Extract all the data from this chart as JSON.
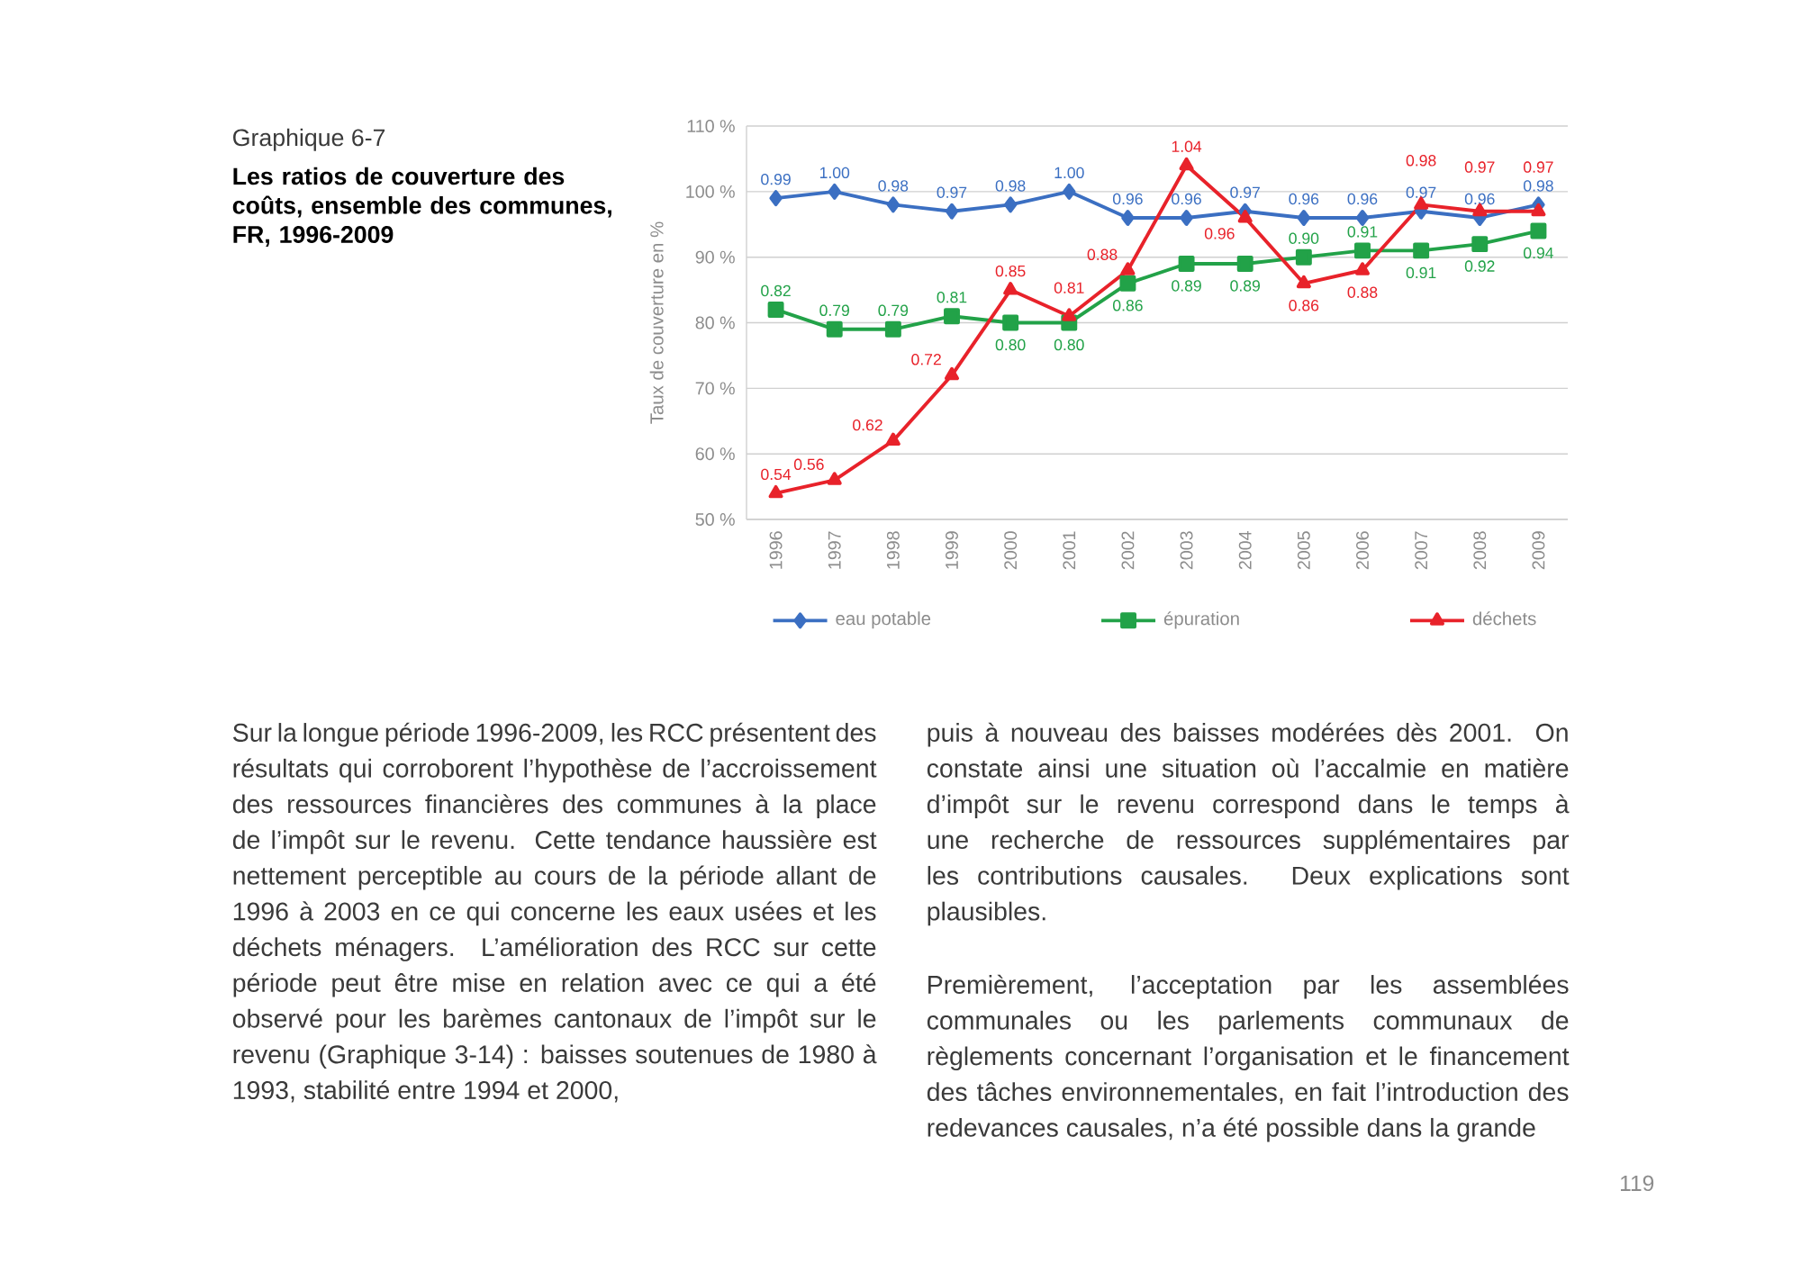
{
  "chart_data": {
    "type": "line",
    "title": "Graphique 6-7",
    "subtitle": "Les ratios de couverture des coûts, ensemble des communes, FR, 1996-2009",
    "ylabel": "Taux de couverture en %",
    "categories": [
      "1996",
      "1997",
      "1998",
      "1999",
      "2000",
      "2001",
      "2002",
      "2003",
      "2004",
      "2005",
      "2006",
      "2007",
      "2008",
      "2009"
    ],
    "ylim": [
      0.5,
      1.1
    ],
    "yticks": [
      {
        "value": 0.5,
        "label": "50 %"
      },
      {
        "value": 0.6,
        "label": "60 %"
      },
      {
        "value": 0.7,
        "label": "70 %"
      },
      {
        "value": 0.8,
        "label": "80 %"
      },
      {
        "value": 0.9,
        "label": "90 %"
      },
      {
        "value": 1.0,
        "label": "100 %"
      },
      {
        "value": 1.1,
        "label": "110 %"
      }
    ],
    "grid": "y",
    "legend": "bottom",
    "series": [
      {
        "name": "eau potable",
        "color": "#3b6fc2",
        "marker": "diamond",
        "values": [
          0.99,
          1.0,
          0.98,
          0.97,
          0.98,
          1.0,
          0.96,
          0.96,
          0.97,
          0.96,
          0.96,
          0.97,
          0.96,
          0.98
        ],
        "value_labels": [
          "0.99",
          "1.00",
          "0.98",
          "0.97",
          "0.98",
          "1.00",
          "0.96",
          "0.96",
          "0.97",
          "0.96",
          "0.96",
          "0.97",
          "0.96",
          "0.98"
        ]
      },
      {
        "name": "épuration",
        "color": "#22a248",
        "marker": "square",
        "values": [
          0.82,
          0.79,
          0.79,
          0.81,
          0.8,
          0.8,
          0.86,
          0.89,
          0.89,
          0.9,
          0.91,
          0.91,
          0.92,
          0.94
        ],
        "value_labels": [
          "0.82",
          "0.79",
          "0.79",
          "0.81",
          "0.80",
          "0.80",
          "0.86",
          "0.89",
          "0.89",
          "0.90",
          "0.91",
          "0.91",
          "0.92",
          "0.94"
        ]
      },
      {
        "name": "déchets",
        "color": "#e8222a",
        "marker": "triangle",
        "values": [
          0.54,
          0.56,
          0.62,
          0.72,
          0.85,
          0.81,
          0.88,
          1.04,
          0.96,
          0.86,
          0.88,
          0.98,
          0.97,
          0.97
        ],
        "value_labels": [
          "0.54",
          "0.56",
          "0.62",
          "0.72",
          "0.85",
          "0.81",
          "0.88",
          "1.04",
          "0.96",
          "0.86",
          "0.88",
          "0.98",
          "0.97",
          "0.97"
        ]
      }
    ],
    "annotations": [
      "Sur la longue période 1996-2009, les RCC présentent des résultats qui corroborent l’hypothèse de l’accroissement des ressources financières des communes à la place de l’impôt sur le revenu. Cette tendance haussière est nettement perceptible au cours de la période allant de 1996 à 2003 en ce qui concerne les eaux usées et les déchets ménagers. L’amélioration des RCC sur cette période peut être mise en relation avec ce qui a été observé pour les barèmes cantonaux de l’impôt sur le revenu (Graphique 3-14) : baisses soutenues de 1980 à 1993, stabilité entre 1994 et 2000,",
      "puis à nouveau des baisses modérées dès 2001. On constate ainsi une situation où l’accalmie en matière d’impôt sur le revenu correspond dans le temps à une recherche de ressources supplémentaires par les contributions causales. Deux explications sont plausibles.",
      "Premièrement, l’acceptation par les assemblées communales ou les parlements communaux de règlements concernant l’organisation et le financement des tâches environnementales, en fait l’introduction des redevances causales, n’a été possible dans la grande",
      "119"
    ]
  }
}
